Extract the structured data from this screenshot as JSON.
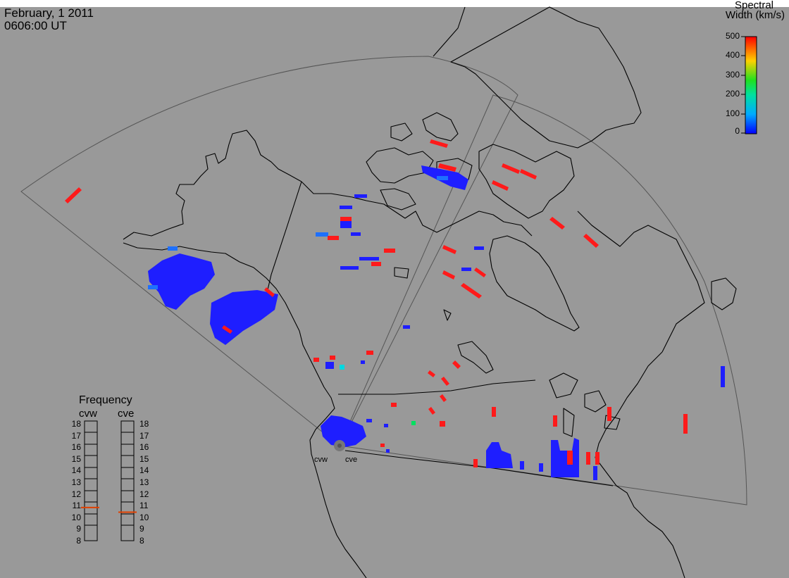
{
  "header": {
    "date": "February, 1 2011",
    "time": "0606:00 UT"
  },
  "colorbar": {
    "title_line1": "Spectral",
    "title_line2": "Width (km/s)",
    "ticks": [
      "500",
      "400",
      "300",
      "200",
      "100",
      "0"
    ],
    "range": [
      0,
      500
    ]
  },
  "frequency_panel": {
    "title": "Frequency",
    "radars": [
      {
        "name": "cvw",
        "frequency_mhz": 10.9
      },
      {
        "name": "cve",
        "frequency_mhz": 10.5
      }
    ],
    "scale": [
      "18",
      "17",
      "16",
      "15",
      "14",
      "13",
      "12",
      "11",
      "10",
      "9",
      "8"
    ],
    "indicator_color": "#e04000"
  },
  "sites": [
    {
      "name": "cvw"
    },
    {
      "name": "cve"
    }
  ],
  "colors": {
    "background": "#999999",
    "land_outline": "#000000",
    "fov_outline": "#555555",
    "low_width": "#2020ff",
    "high_width": "#ff0000",
    "mid_width": "#00e060"
  }
}
